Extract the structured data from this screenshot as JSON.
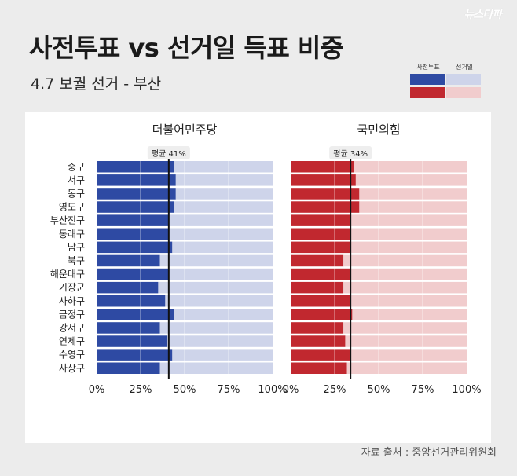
{
  "header": {
    "title": "사전투표 vs 선거일 득표 비중",
    "subtitle": "4.7 보궐 선거 - 부산",
    "watermark": "뉴스타파"
  },
  "legend": {
    "early_label": "사전투표",
    "election_label": "선거일"
  },
  "colors": {
    "dem_early": "#2e4aa3",
    "dem_day": "#ced4ea",
    "ppp_early": "#c1282f",
    "ppp_day": "#f1cccd",
    "avg_line": "#111111"
  },
  "source": "자료 출처 : 중앙선거관리위원회",
  "chart_data": [
    {
      "type": "bar",
      "title": "더불어민주당",
      "categories": [
        "중구",
        "서구",
        "동구",
        "영도구",
        "부산진구",
        "동래구",
        "남구",
        "북구",
        "해운대구",
        "기장군",
        "사하구",
        "금정구",
        "강서구",
        "연제구",
        "수영구",
        "사상구"
      ],
      "series": [
        {
          "name": "사전투표",
          "values": [
            44,
            45,
            45,
            44,
            41,
            41,
            43,
            36,
            41,
            35,
            39,
            44,
            36,
            40,
            43,
            36
          ]
        },
        {
          "name": "선거일",
          "values": [
            56,
            55,
            55,
            56,
            59,
            59,
            57,
            64,
            59,
            65,
            61,
            56,
            64,
            60,
            57,
            64
          ]
        }
      ],
      "stacked": true,
      "average": {
        "value": 41,
        "label": "평균 41%"
      },
      "xlim": [
        0,
        100
      ],
      "xticks": [
        "0%",
        "25%",
        "50%",
        "75%",
        "100%"
      ]
    },
    {
      "type": "bar",
      "title": "국민의힘",
      "categories": [
        "중구",
        "서구",
        "동구",
        "영도구",
        "부산진구",
        "동래구",
        "남구",
        "북구",
        "해운대구",
        "기장군",
        "사하구",
        "금정구",
        "강서구",
        "연제구",
        "수영구",
        "사상구"
      ],
      "series": [
        {
          "name": "사전투표",
          "values": [
            36,
            37,
            39,
            39,
            34,
            34,
            34,
            30,
            34,
            30,
            34,
            35,
            30,
            31,
            34,
            32
          ]
        },
        {
          "name": "선거일",
          "values": [
            64,
            63,
            61,
            61,
            66,
            66,
            66,
            70,
            66,
            70,
            66,
            65,
            70,
            69,
            66,
            68
          ]
        }
      ],
      "stacked": true,
      "average": {
        "value": 34,
        "label": "평균 34%"
      },
      "xlim": [
        0,
        100
      ],
      "xticks": [
        "0%",
        "25%",
        "50%",
        "75%",
        "100%"
      ]
    }
  ]
}
